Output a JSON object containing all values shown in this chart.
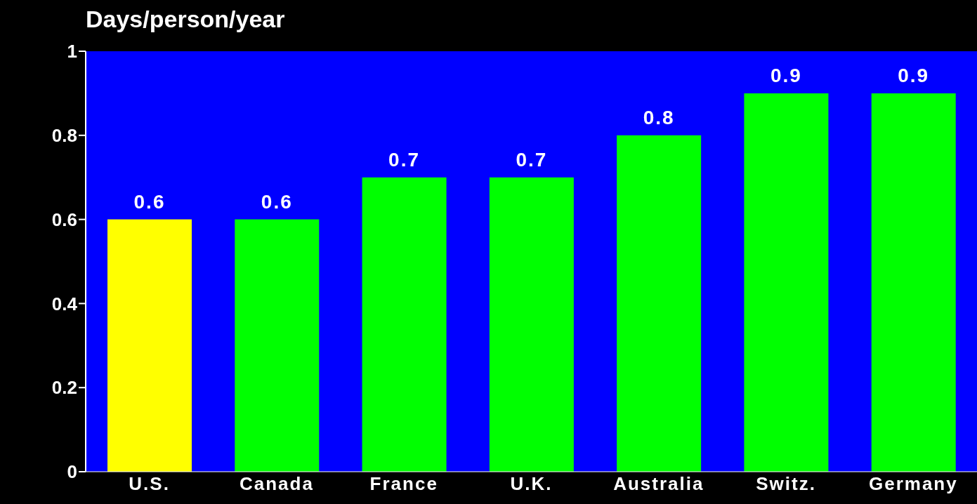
{
  "chart_data": {
    "type": "bar",
    "title": "Days/person/year",
    "categories": [
      "U.S.",
      "Canada",
      "France",
      "U.K.",
      "Australia",
      "Switz.",
      "Germany"
    ],
    "values": [
      0.6,
      0.6,
      0.7,
      0.7,
      0.8,
      0.9,
      0.9
    ],
    "colors": [
      "#ffff00",
      "#00ff00",
      "#00ff00",
      "#00ff00",
      "#00ff00",
      "#00ff00",
      "#00ff00"
    ],
    "ylim": [
      0,
      1
    ],
    "yticks": [
      0,
      0.2,
      0.4,
      0.6,
      0.8,
      1
    ],
    "grid": false,
    "data_labels": true,
    "legend": false
  }
}
